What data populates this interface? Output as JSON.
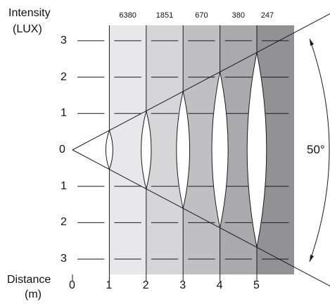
{
  "title": {
    "line1": "Intensity",
    "line2": "(LUX)"
  },
  "y_axis": {
    "ticks": [
      "3",
      "2",
      "1",
      "0",
      "1",
      "2",
      "3"
    ],
    "tick_values": [
      3,
      2,
      1,
      0,
      -1,
      -2,
      -3
    ]
  },
  "x_axis": {
    "label_line1": "Distance",
    "label_line2": "(m)",
    "ticks": [
      "0",
      "1",
      "2",
      "3",
      "4",
      "5"
    ],
    "tick_values": [
      0,
      1,
      2,
      3,
      4,
      5
    ]
  },
  "lux_values": [
    "6380",
    "1851",
    "670",
    "380",
    "247"
  ],
  "beam_angle": {
    "label": "50°",
    "degrees": 50
  },
  "bands": {
    "colors": [
      "#e8e8ea",
      "#d6d6d8",
      "#c0c0c2",
      "#aaaaac",
      "#929294"
    ]
  }
}
